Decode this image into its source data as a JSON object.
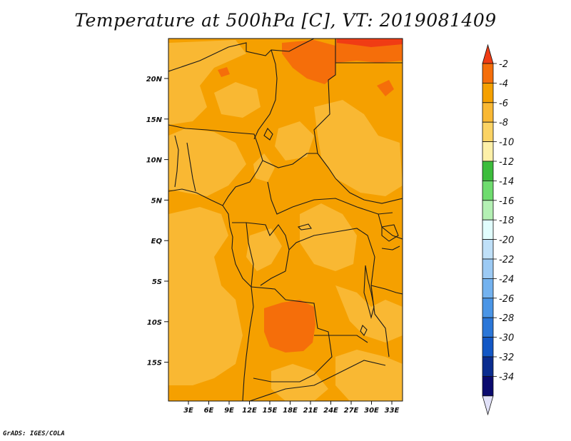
{
  "title": "Temperature at 500hPa [C], VT: 2019081409",
  "credit": "GrADS: IGES/COLA",
  "lat_ticks": [
    "20N",
    "15N",
    "10N",
    "5N",
    "EQ",
    "5S",
    "10S",
    "15S"
  ],
  "lon_ticks": [
    "3E",
    "6E",
    "9E",
    "12E",
    "15E",
    "18E",
    "21E",
    "24E",
    "27E",
    "30E",
    "33E"
  ],
  "colorbar": {
    "labels": [
      "-2",
      "-4",
      "-6",
      "-8",
      "-10",
      "-12",
      "-14",
      "-16",
      "-18",
      "-20",
      "-22",
      "-24",
      "-26",
      "-28",
      "-30",
      "-32",
      "-34"
    ],
    "colors": [
      "#f03c14",
      "#f56e0a",
      "#f5a000",
      "#f9b833",
      "#fbd364",
      "#fdf0a8",
      "#3cbd3c",
      "#6edc6e",
      "#b4f0b4",
      "#e1fdfd",
      "#bfe0f8",
      "#9ccaf4",
      "#73b2ef",
      "#4a95e6",
      "#2a76d8",
      "#1257c5",
      "#0a2c8f",
      "#0a0a6e",
      "#e1e1f8"
    ]
  }
}
